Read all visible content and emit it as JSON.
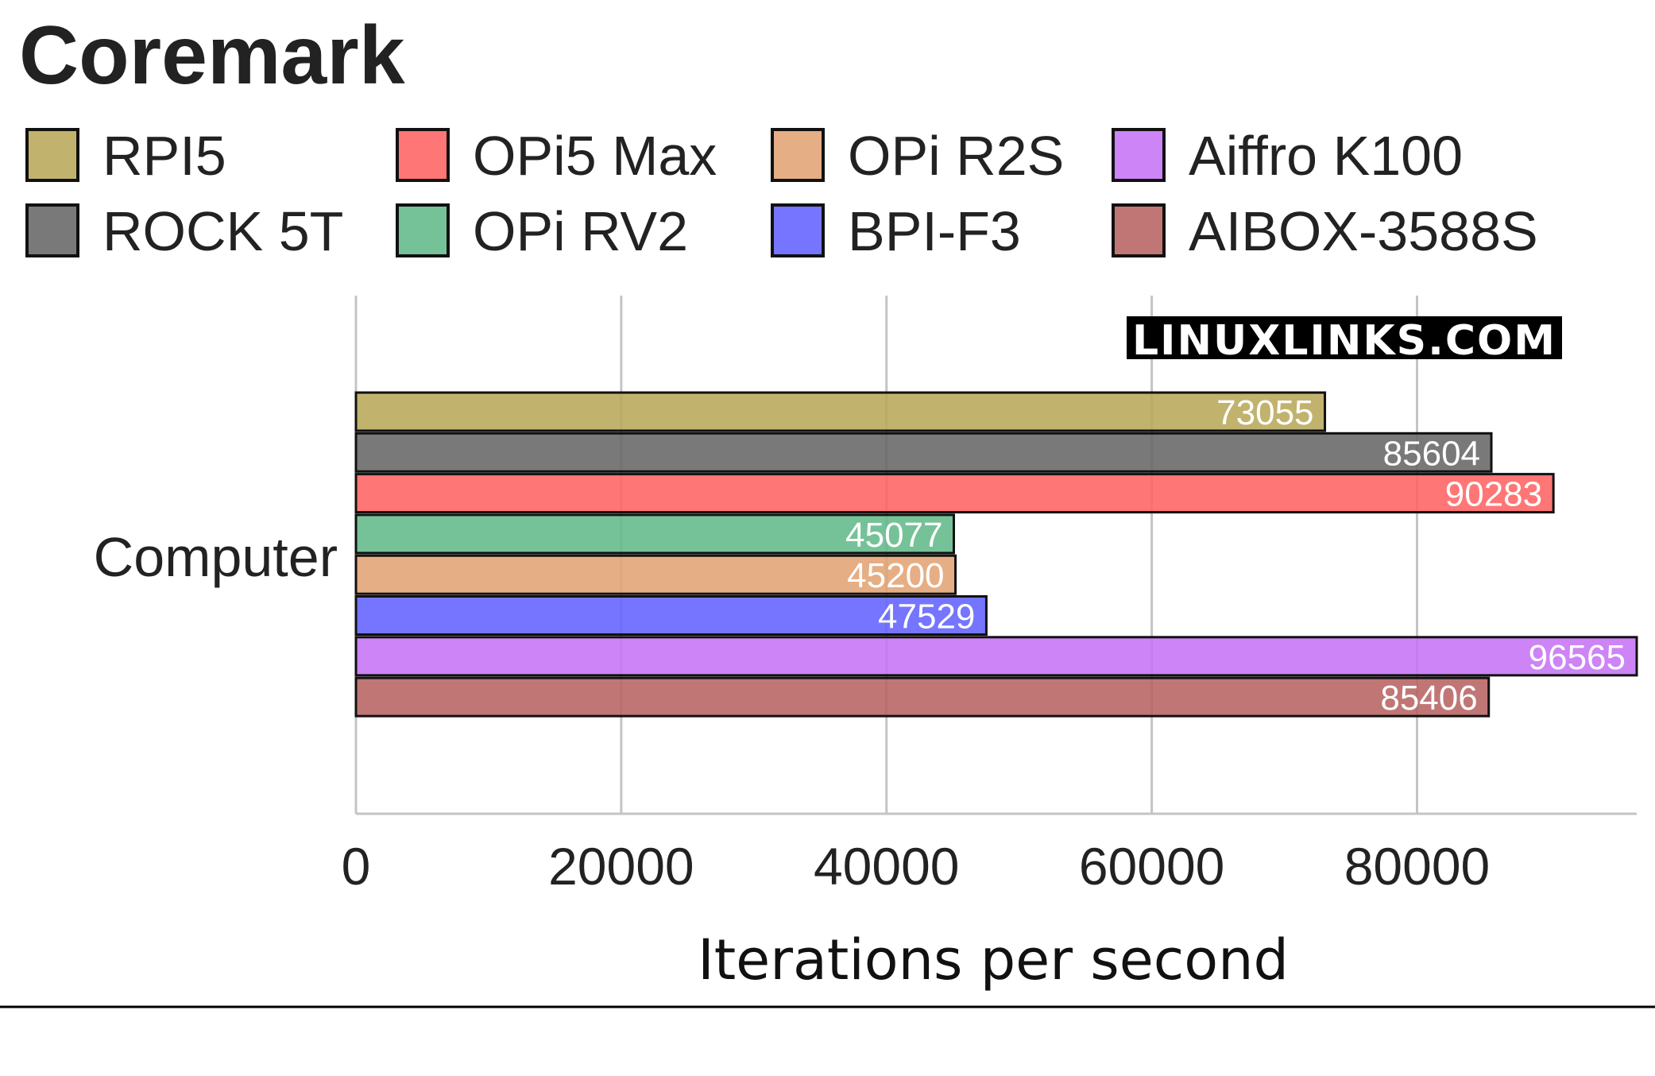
{
  "chart_data": {
    "type": "bar",
    "orientation": "horizontal",
    "title": "Coremark",
    "xlabel": "Iterations per second",
    "category": "Computer",
    "xlim": [
      0,
      96565
    ],
    "xticks": [
      0,
      20000,
      40000,
      60000,
      80000
    ],
    "grid": true,
    "legend_position": "top",
    "watermark": "LINUXLINKS.COM",
    "series": [
      {
        "name": "RPI5",
        "value": 73055,
        "color": "#b8a95a"
      },
      {
        "name": "ROCK 5T",
        "value": 85604,
        "color": "#666666"
      },
      {
        "name": "OPi5 Max",
        "value": 90283,
        "color": "#ff6363"
      },
      {
        "name": "OPi RV2",
        "value": 45077,
        "color": "#63b98a"
      },
      {
        "name": "OPi R2S",
        "value": 45200,
        "color": "#e3a373"
      },
      {
        "name": "BPI-F3",
        "value": 47529,
        "color": "#6262ff"
      },
      {
        "name": "Aiffro K100",
        "value": 96565,
        "color": "#c673f5"
      },
      {
        "name": "AIBOX-3588S",
        "value": 85406,
        "color": "#b86363"
      }
    ],
    "legend_order": [
      0,
      2,
      4,
      6,
      1,
      3,
      5,
      7
    ]
  }
}
